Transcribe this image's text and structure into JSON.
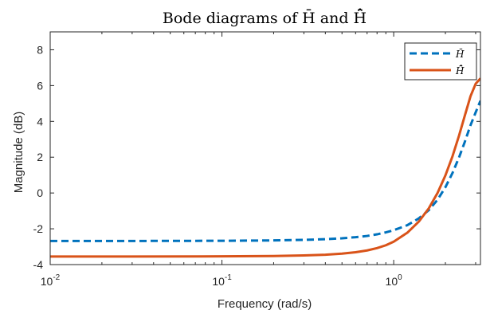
{
  "chart_data": {
    "type": "line",
    "title": "Bode diagrams of H̄ and H̄̂",
    "xlabel": "Frequency (rad/s)",
    "ylabel": "Magnitude (dB)",
    "xscale": "log",
    "xlim": [
      0.01,
      3.2
    ],
    "ylim": [
      -4,
      9
    ],
    "grid": false,
    "legend_position": "top-right",
    "x_ticks": [
      {
        "base": "10",
        "exp": "-2"
      },
      {
        "base": "10",
        "exp": "-1"
      },
      {
        "base": "10",
        "exp": "0"
      }
    ],
    "y_ticks": [
      "8",
      "6",
      "4",
      "2",
      "0",
      "-2",
      "-4"
    ],
    "series": [
      {
        "name": "H̄",
        "color": "#0072BD",
        "style": "dashed",
        "x": [
          0.01,
          0.03,
          0.1,
          0.2,
          0.3,
          0.4,
          0.5,
          0.6,
          0.7,
          0.8,
          0.9,
          1.0,
          1.2,
          1.4,
          1.6,
          1.8,
          2.0,
          2.2,
          2.4,
          2.6,
          2.8,
          3.0,
          3.2
        ],
        "values": [
          -2.68,
          -2.68,
          -2.67,
          -2.65,
          -2.62,
          -2.58,
          -2.53,
          -2.47,
          -2.4,
          -2.31,
          -2.2,
          -2.08,
          -1.8,
          -1.42,
          -0.96,
          -0.38,
          0.32,
          1.12,
          1.98,
          2.88,
          3.78,
          4.5,
          5.15
        ]
      },
      {
        "name": "H̄̂",
        "color": "#D95319",
        "style": "solid",
        "x": [
          0.01,
          0.03,
          0.1,
          0.2,
          0.3,
          0.4,
          0.5,
          0.6,
          0.7,
          0.8,
          0.9,
          1.0,
          1.2,
          1.4,
          1.6,
          1.8,
          2.0,
          2.2,
          2.4,
          2.6,
          2.8,
          3.0,
          3.2
        ],
        "values": [
          -3.55,
          -3.55,
          -3.54,
          -3.52,
          -3.49,
          -3.45,
          -3.39,
          -3.31,
          -3.21,
          -3.08,
          -2.92,
          -2.72,
          -2.22,
          -1.6,
          -0.86,
          0.0,
          0.98,
          2.05,
          3.2,
          4.35,
          5.4,
          6.1,
          6.4
        ]
      }
    ]
  }
}
